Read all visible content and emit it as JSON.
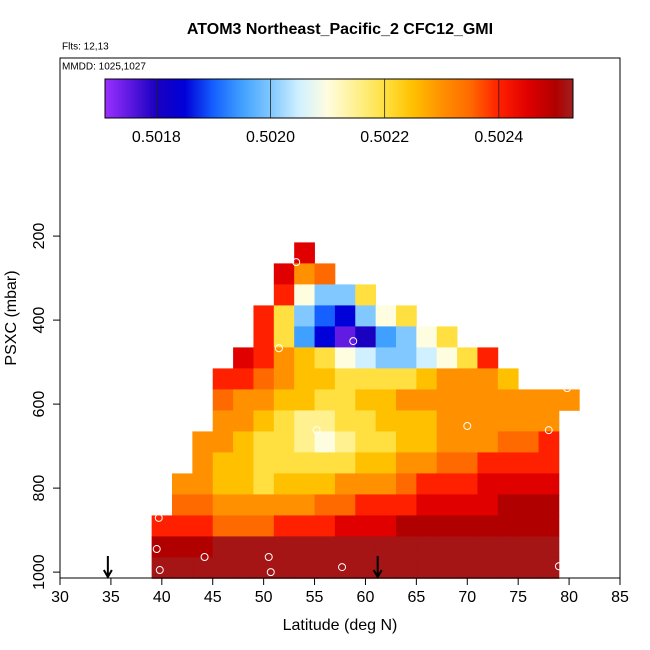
{
  "chart_data": {
    "type": "heatmap",
    "title": "ATOM3 Northeast_Pacific_2 CFC12_GMI",
    "annotations": [
      "Flts: 12,13",
      "MMDD: 1025,1027"
    ],
    "x_label": "Latitude (deg N)",
    "y_label": "PSXC (mbar)",
    "xlim": [
      30,
      85
    ],
    "xticks": [
      30,
      35,
      40,
      45,
      50,
      55,
      60,
      65,
      70,
      75,
      80,
      85
    ],
    "ylim": [
      1014,
      -224
    ],
    "yticks": [
      200,
      400,
      600,
      800,
      1000
    ],
    "x": [
      40,
      42,
      44,
      46,
      48,
      50,
      52,
      54,
      56,
      58,
      60,
      62,
      64,
      66,
      68,
      70,
      72,
      74,
      76,
      78,
      80
    ],
    "y": [
      240,
      290,
      340,
      390,
      440,
      490,
      540,
      590,
      640,
      690,
      740,
      790,
      840,
      890,
      940,
      990
    ],
    "z": [
      [
        null,
        null,
        null,
        null,
        null,
        null,
        null,
        0.50245,
        null,
        null,
        null,
        null,
        null,
        null,
        null,
        null,
        null,
        null,
        null,
        null,
        null
      ],
      [
        null,
        null,
        null,
        null,
        null,
        null,
        0.50245,
        0.5023,
        0.50235,
        null,
        null,
        null,
        null,
        null,
        null,
        null,
        null,
        null,
        null,
        null,
        null
      ],
      [
        null,
        null,
        null,
        null,
        null,
        null,
        0.5024,
        0.5021,
        0.502,
        0.502,
        0.5022,
        null,
        null,
        null,
        null,
        null,
        null,
        null,
        null,
        null,
        null
      ],
      [
        null,
        null,
        null,
        null,
        null,
        0.5024,
        0.5022,
        0.502,
        0.5019,
        0.50185,
        0.502,
        0.5021,
        0.5022,
        null,
        null,
        null,
        null,
        null,
        null,
        null,
        null
      ],
      [
        null,
        null,
        null,
        null,
        null,
        0.5024,
        0.5022,
        0.50195,
        0.50185,
        0.50175,
        0.5018,
        0.50195,
        0.502,
        0.5021,
        0.5022,
        null,
        null,
        null,
        null,
        null,
        null
      ],
      [
        null,
        null,
        null,
        null,
        0.50245,
        0.5024,
        0.5023,
        0.50225,
        0.5022,
        0.5021,
        0.50205,
        0.502,
        0.502,
        0.50205,
        0.5021,
        0.5022,
        0.5024,
        null,
        null,
        null,
        null
      ],
      [
        null,
        null,
        null,
        0.5024,
        0.5024,
        0.50235,
        0.5023,
        0.50225,
        0.50225,
        0.5022,
        0.5022,
        0.5022,
        0.5022,
        0.50225,
        0.5023,
        0.5023,
        0.5023,
        0.50225,
        null,
        null,
        null
      ],
      [
        null,
        null,
        null,
        0.50235,
        0.5023,
        0.5023,
        0.50225,
        0.50225,
        0.5022,
        0.5022,
        0.50225,
        0.50225,
        0.5023,
        0.5023,
        0.5023,
        0.5023,
        0.5023,
        0.5023,
        0.5023,
        0.5023,
        0.5023
      ],
      [
        null,
        null,
        null,
        0.5023,
        0.5023,
        0.50225,
        0.5022,
        0.50215,
        0.50215,
        0.5022,
        0.5022,
        0.50225,
        0.50225,
        0.50225,
        0.5023,
        0.5023,
        0.5023,
        0.5023,
        0.5023,
        0.5023,
        null
      ],
      [
        null,
        null,
        0.5023,
        0.5023,
        0.50225,
        0.5022,
        0.5022,
        0.50215,
        0.5021,
        0.50215,
        0.5022,
        0.5022,
        0.50225,
        0.50225,
        0.5023,
        0.5023,
        0.5023,
        0.50235,
        0.50235,
        0.5024,
        null
      ],
      [
        null,
        null,
        0.5023,
        0.50225,
        0.50225,
        0.5022,
        0.5022,
        0.5022,
        0.5022,
        0.5022,
        0.50225,
        0.50225,
        0.5023,
        0.5023,
        0.50235,
        0.50235,
        0.5024,
        0.5024,
        0.5024,
        0.5024,
        null
      ],
      [
        null,
        0.5023,
        0.5023,
        0.50225,
        0.50225,
        0.5022,
        0.50225,
        0.50225,
        0.50225,
        0.5023,
        0.5023,
        0.5023,
        0.50235,
        0.5024,
        0.5024,
        0.5024,
        0.50245,
        0.50245,
        0.50245,
        0.50245,
        null
      ],
      [
        null,
        0.50235,
        0.50235,
        0.5023,
        0.5023,
        0.5023,
        0.5023,
        0.5023,
        0.50235,
        0.50235,
        0.5024,
        0.5024,
        0.5024,
        0.50245,
        0.50245,
        0.50245,
        0.50245,
        0.5025,
        0.5025,
        0.5025,
        null
      ],
      [
        0.5024,
        0.5024,
        0.5024,
        0.50235,
        0.50235,
        0.50235,
        0.5024,
        0.5024,
        0.5024,
        0.50245,
        0.50245,
        0.50245,
        0.5025,
        0.5025,
        0.5025,
        0.5025,
        0.5025,
        0.5025,
        0.5025,
        0.5025,
        null
      ],
      [
        0.5025,
        0.5025,
        0.5025,
        0.50252,
        0.50252,
        0.50252,
        0.50252,
        0.50252,
        0.50252,
        0.50252,
        0.50252,
        0.50252,
        0.50252,
        0.50252,
        0.50252,
        0.50252,
        0.50252,
        0.50252,
        0.50252,
        0.50252,
        null
      ],
      [
        0.50252,
        0.50252,
        0.50252,
        0.50252,
        0.50252,
        0.50252,
        0.50252,
        0.50252,
        0.50252,
        0.50252,
        0.50252,
        0.50252,
        0.50252,
        0.50252,
        0.50252,
        0.50252,
        0.50252,
        0.50252,
        0.50252,
        0.50252,
        null
      ]
    ],
    "points": {
      "color": "#ffffff",
      "x": [
        53.2,
        51.5,
        58.8,
        55.2,
        70,
        78,
        79.8,
        39.7,
        39.5,
        44.2,
        50.5,
        50.7,
        57.7,
        39.8,
        79
      ],
      "y": [
        262,
        467,
        450,
        662,
        652,
        662,
        562,
        871,
        945,
        964,
        964,
        1000,
        988,
        995,
        986
      ]
    },
    "arrows_x": [
      34.7,
      61.2
    ],
    "colorbar": {
      "lim": [
        0.50171,
        0.50253
      ],
      "ticks": [
        0.5018,
        {
          "value": 0.502,
          "label": "0.5020"
        },
        0.5022,
        0.5024
      ],
      "stops": [
        {
          "value": 0.50171,
          "color": "#9a30ff"
        },
        {
          "value": 0.5018,
          "color": "#1a00c0"
        },
        {
          "value": 0.50185,
          "color": "#0000d8"
        },
        {
          "value": 0.5019,
          "color": "#1560ff"
        },
        {
          "value": 0.50195,
          "color": "#40a0ff"
        },
        {
          "value": 0.502,
          "color": "#80c8ff"
        },
        {
          "value": 0.50205,
          "color": "#d0f0ff"
        },
        {
          "value": 0.5021,
          "color": "#fffde0"
        },
        {
          "value": 0.50215,
          "color": "#fff090"
        },
        {
          "value": 0.5022,
          "color": "#ffe040"
        },
        {
          "value": 0.50225,
          "color": "#ffc000"
        },
        {
          "value": 0.5023,
          "color": "#ff9000"
        },
        {
          "value": 0.50235,
          "color": "#ff6a00"
        },
        {
          "value": 0.5024,
          "color": "#ff2000"
        },
        {
          "value": 0.50245,
          "color": "#e00000"
        },
        {
          "value": 0.5025,
          "color": "#b00000"
        },
        {
          "value": 0.50253,
          "color": "#a02020"
        }
      ]
    }
  }
}
